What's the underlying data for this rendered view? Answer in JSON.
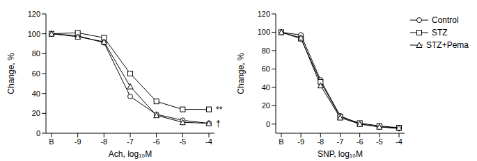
{
  "chart_data": [
    {
      "type": "line",
      "x_label": "Ach, log₁₀M",
      "y_label": "Change, %",
      "categories": [
        "B",
        "-9",
        "-8",
        "-7",
        "-6",
        "-5",
        "-4"
      ],
      "ylim": [
        0,
        120
      ],
      "yticks": [
        0,
        20,
        40,
        60,
        80,
        100,
        120
      ],
      "series": [
        {
          "name": "Control",
          "color": "#000000",
          "marker": "circle",
          "values": [
            100,
            98,
            91,
            37,
            19,
            13,
            10
          ]
        },
        {
          "name": "STZ",
          "color": "#000000",
          "marker": "square",
          "values": [
            100,
            101,
            96,
            60,
            32,
            24,
            24
          ]
        },
        {
          "name": "STZ+Pema",
          "color": "#000000",
          "marker": "triangle",
          "values": [
            100,
            97,
            92,
            47,
            18,
            11,
            10
          ]
        }
      ],
      "annotations": [
        {
          "text": "**",
          "series": "STZ"
        },
        {
          "text": "†",
          "series": "STZ+Pema"
        }
      ]
    },
    {
      "type": "line",
      "x_label": "SNP, log₁₀M",
      "y_label": "Change, %",
      "categories": [
        "B",
        "-9",
        "-8",
        "-7",
        "-6",
        "-5",
        "-4"
      ],
      "ylim": [
        -10,
        120
      ],
      "yticks": [
        0,
        20,
        40,
        60,
        80,
        100,
        120
      ],
      "legend": "right",
      "series": [
        {
          "name": "Control",
          "color": "#000000",
          "marker": "circle",
          "values": [
            100,
            97,
            48,
            9,
            0,
            -3,
            -5
          ]
        },
        {
          "name": "STZ",
          "color": "#000000",
          "marker": "square",
          "values": [
            100,
            93,
            46,
            8,
            1,
            -2,
            -4
          ]
        },
        {
          "name": "STZ+Pema",
          "color": "#000000",
          "marker": "triangle",
          "values": [
            100,
            94,
            42,
            7,
            0,
            -3,
            -4
          ]
        }
      ]
    }
  ]
}
